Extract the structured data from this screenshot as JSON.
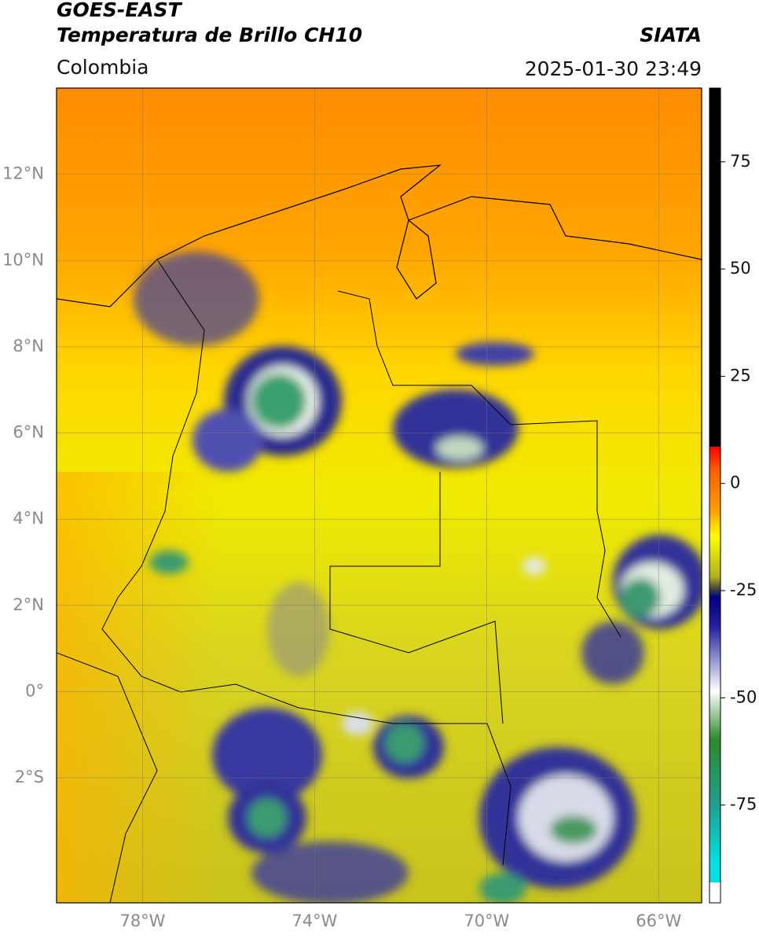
{
  "header": {
    "title_top": "GOES-EAST",
    "title_main": "Temperatura de Brillo CH10",
    "region": "Colombia",
    "source": "SIATA",
    "datetime": "2025-01-30 23:49"
  },
  "map": {
    "xlim": [
      -80,
      -65
    ],
    "ylim": [
      -4.9,
      14
    ],
    "xticks": [
      {
        "value": -78,
        "label": "78°W"
      },
      {
        "value": -74,
        "label": "74°W"
      },
      {
        "value": -70,
        "label": "70°W"
      },
      {
        "value": -66,
        "label": "66°W"
      }
    ],
    "yticks": [
      {
        "value": 12,
        "label": "12°N"
      },
      {
        "value": 10,
        "label": "10°N"
      },
      {
        "value": 8,
        "label": "8°N"
      },
      {
        "value": 6,
        "label": "6°N"
      },
      {
        "value": 4,
        "label": "4°N"
      },
      {
        "value": 2,
        "label": "2°N"
      },
      {
        "value": 0,
        "label": "0°"
      },
      {
        "value": -2,
        "label": "2°S"
      }
    ]
  },
  "colorbar": {
    "lim": [
      -97.8,
      92.2
    ],
    "ticks": [
      75,
      50,
      25,
      0,
      -25,
      -50,
      -75
    ]
  }
}
